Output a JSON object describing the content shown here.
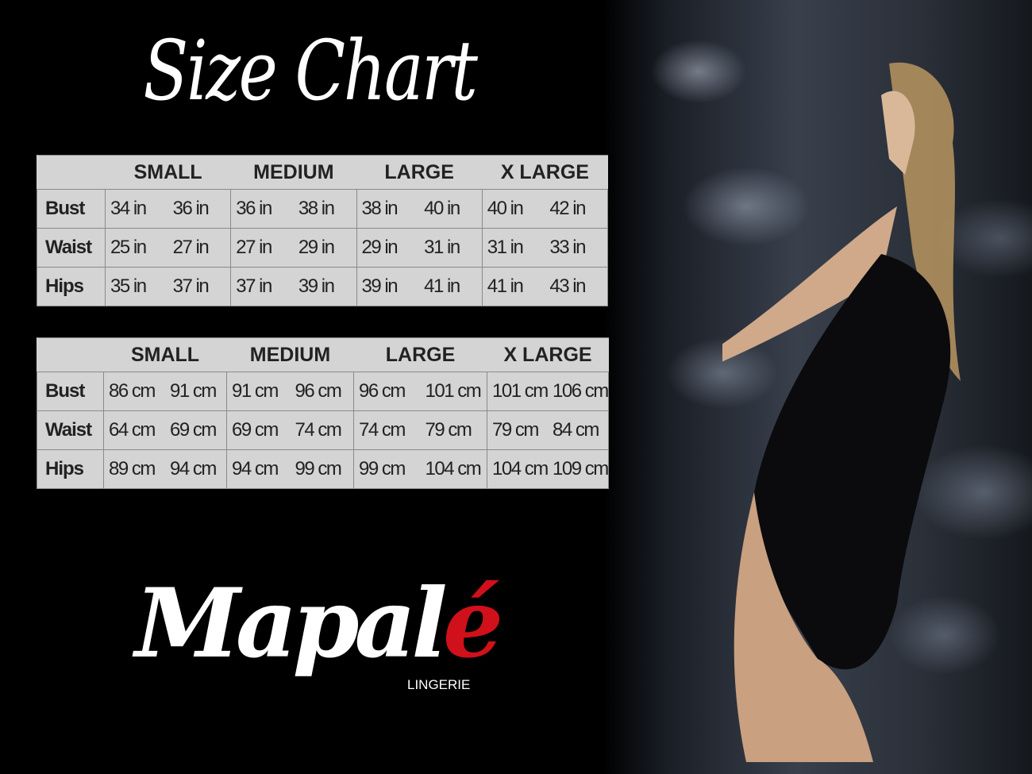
{
  "title": "Size Chart",
  "sizes": [
    "SMALL",
    "MEDIUM",
    "LARGE",
    "X LARGE"
  ],
  "inches_table": {
    "rows": [
      {
        "label": "Bust",
        "values": [
          "34 in",
          "36 in",
          "36 in",
          "38 in",
          "38 in",
          "40 in",
          "40 in",
          "42 in"
        ]
      },
      {
        "label": "Waist",
        "values": [
          "25 in",
          "27 in",
          "27 in",
          "29 in",
          "29 in",
          "31 in",
          "31 in",
          "33 in"
        ]
      },
      {
        "label": "Hips",
        "values": [
          "35 in",
          "37 in",
          "37 in",
          "39 in",
          "39 in",
          "41 in",
          "41 in",
          "43 in"
        ]
      }
    ]
  },
  "cm_table": {
    "rows": [
      {
        "label": "Bust",
        "values": [
          "86 cm",
          "91 cm",
          "91 cm",
          "96 cm",
          "96 cm",
          "101 cm",
          "101 cm",
          "106 cm"
        ]
      },
      {
        "label": "Waist",
        "values": [
          "64 cm",
          "69 cm",
          "69 cm",
          "74 cm",
          "74 cm",
          "79 cm",
          "79 cm",
          "84 cm"
        ]
      },
      {
        "label": "Hips",
        "values": [
          "89 cm",
          "94 cm",
          "94 cm",
          "99 cm",
          "99 cm",
          "104 cm",
          "104 cm",
          "109 cm"
        ]
      }
    ]
  },
  "logo": {
    "brand_main": "Mapal",
    "brand_accent": "é",
    "subtitle": "LINGERIE"
  },
  "colors": {
    "background": "#000000",
    "table_bg": "#d4d4d4",
    "logo_accent": "#d0101a"
  }
}
